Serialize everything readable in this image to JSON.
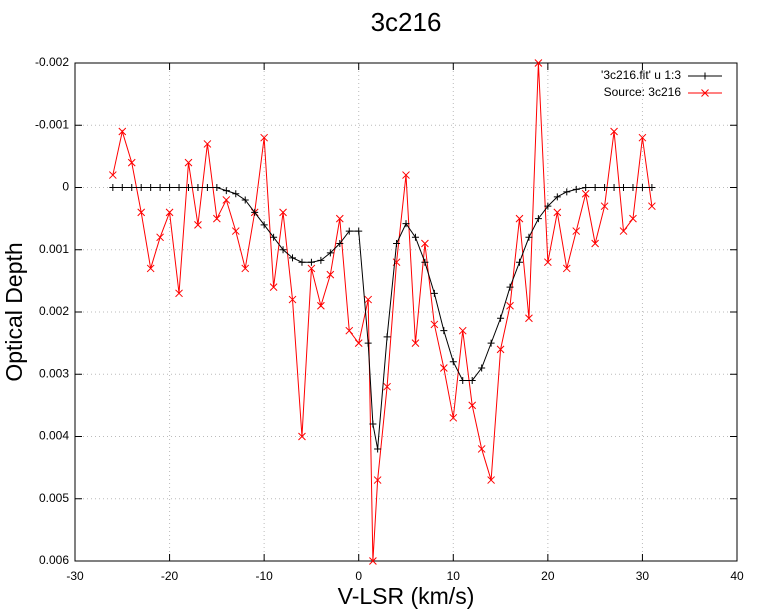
{
  "chart_data": {
    "type": "line",
    "title": "3c216",
    "xlabel": "V-LSR (km/s)",
    "ylabel": "Optical Depth",
    "x": [
      -26,
      -25,
      -24,
      -23,
      -22,
      -21,
      -20,
      -19,
      -18,
      -17,
      -16,
      -15,
      -14,
      -13,
      -12,
      -11,
      -10,
      -9,
      -8,
      -7,
      -6,
      -5,
      -4,
      -3,
      -2,
      -1,
      0,
      1,
      1.5,
      2,
      3,
      4,
      5,
      6,
      7,
      8,
      9,
      10,
      11,
      12,
      13,
      14,
      15,
      16,
      17,
      18,
      19,
      20,
      21,
      22,
      23,
      24,
      25,
      26,
      27,
      28,
      29,
      30,
      31
    ],
    "series": [
      {
        "name": "'3c216.fit' u 1:3",
        "color": "#000000",
        "marker": "plus",
        "values": [
          0,
          0,
          0,
          0,
          0,
          0,
          0,
          0,
          0,
          0,
          0,
          0,
          5e-05,
          0.0001,
          0.0002,
          0.0004,
          0.0006,
          0.0008,
          0.001,
          0.00113,
          0.0012,
          0.0012,
          0.00117,
          0.00105,
          0.0009,
          0.0007,
          0.0007,
          0.0025,
          0.0038,
          0.0042,
          0.0024,
          0.0009,
          0.00058,
          0.0008,
          0.0012,
          0.0017,
          0.0023,
          0.0028,
          0.0031,
          0.0031,
          0.0029,
          0.0025,
          0.0021,
          0.0016,
          0.0012,
          0.0008,
          0.0005,
          0.0003,
          0.00015,
          7e-05,
          3e-05,
          0,
          0,
          0,
          0,
          0,
          0,
          0,
          0
        ]
      },
      {
        "name": "Source: 3c216",
        "color": "#ff0000",
        "marker": "cross",
        "values": [
          -0.0002,
          -0.0009,
          -0.0004,
          0.0004,
          0.0013,
          0.0008,
          0.0004,
          0.0017,
          -0.0004,
          0.0006,
          -0.0007,
          0.0005,
          0.0002,
          0.0007,
          0.0013,
          0.0004,
          -0.0008,
          0.0016,
          0.0004,
          0.0018,
          0.004,
          0.0013,
          0.0019,
          0.0014,
          0.0005,
          0.0023,
          0.0025,
          0.0018,
          0.006,
          0.0047,
          0.0032,
          0.0012,
          -0.0002,
          0.0025,
          0.0009,
          0.0022,
          0.0029,
          0.0037,
          0.0023,
          0.0035,
          0.0042,
          0.0047,
          0.0026,
          0.0019,
          0.0005,
          0.0021,
          -0.002,
          0.0012,
          0.0004,
          0.0013,
          0.0007,
          0.0001,
          0.0009,
          0.0003,
          -0.0009,
          0.0007,
          0.0005,
          -0.0008,
          0.0003
        ]
      }
    ],
    "xlim": [
      -30,
      40
    ],
    "xticks": [
      -30,
      -20,
      -10,
      0,
      10,
      20,
      30,
      40
    ],
    "ylim": [
      0.006,
      -0.002
    ],
    "yticks": [
      -0.002,
      -0.001,
      0,
      0.001,
      0.002,
      0.003,
      0.004,
      0.005,
      0.006
    ],
    "grid": true,
    "legend": "top-right"
  }
}
